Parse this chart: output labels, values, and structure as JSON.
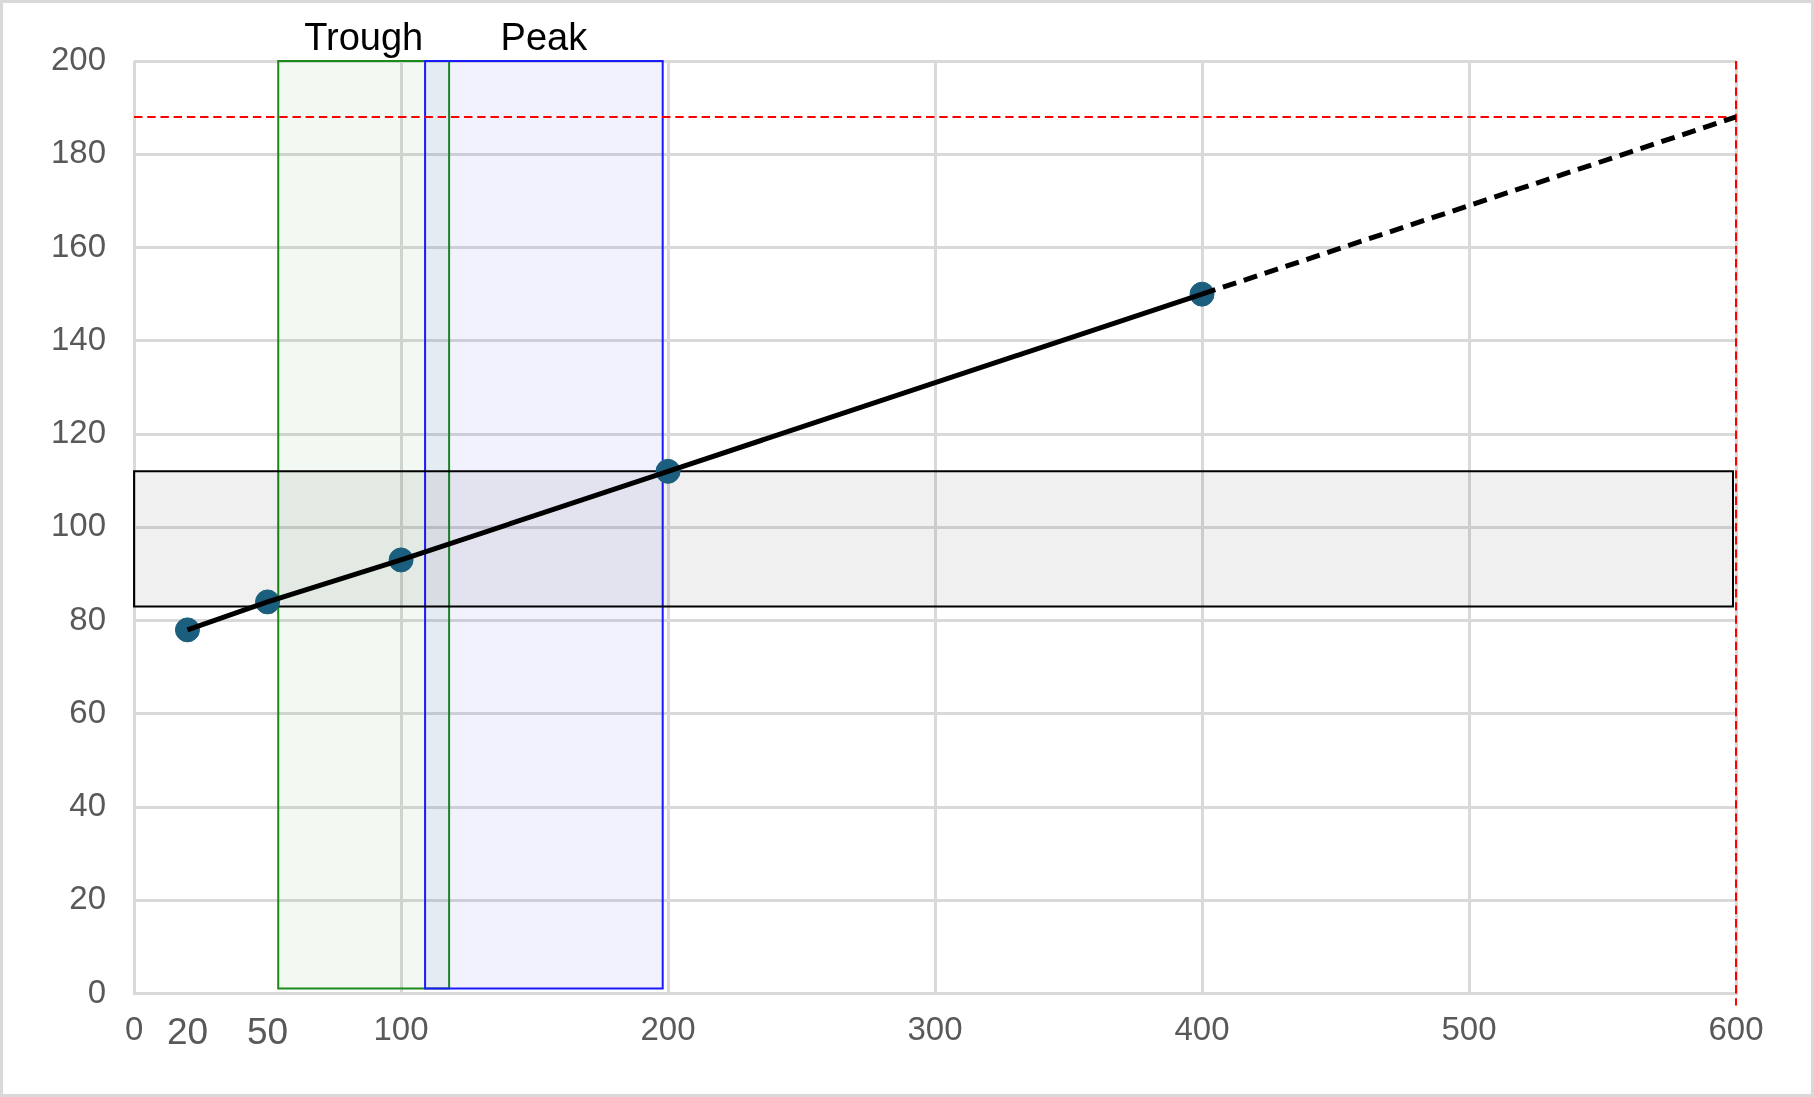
{
  "chart_data": {
    "type": "scatter",
    "xlim": [
      0,
      600
    ],
    "xticks": [
      0,
      {
        "value": 20,
        "label": "20"
      },
      {
        "value": 50,
        "label": "50"
      },
      100,
      200,
      300,
      400,
      500,
      600
    ],
    "ylim": [
      0,
      200
    ],
    "yticks": [
      0,
      20,
      40,
      60,
      80,
      100,
      120,
      140,
      160,
      180,
      200
    ],
    "grid": true,
    "legend": false,
    "series": [
      {
        "type": "line",
        "color": "#000000",
        "x": [
          20,
          50,
          100,
          200,
          400
        ],
        "values": [
          78,
          84,
          93,
          112,
          150
        ],
        "marker": "none",
        "line_style": "solid"
      },
      {
        "type": "line",
        "color": "#000000",
        "x": [
          400,
          600
        ],
        "values": [
          150,
          188
        ],
        "marker": "none",
        "line_style": "dashed"
      },
      {
        "type": "scatter",
        "color": "#1b5e7e",
        "x": [
          20,
          50,
          100,
          200,
          400
        ],
        "values": [
          78,
          84,
          93,
          112,
          150
        ],
        "marker": "circle"
      }
    ],
    "bands": [
      {
        "axis": "x",
        "from": 54,
        "to": 118,
        "label": "Trough",
        "color": "#1a8a1a"
      },
      {
        "axis": "x",
        "from": 109,
        "to": 198,
        "label": "Peak",
        "color": "#1a1aff"
      },
      {
        "axis": "y",
        "from": 83,
        "to": 112,
        "color": "#000000"
      }
    ],
    "ref_lines": [
      {
        "axis": "y",
        "value": 188,
        "color": "#ff0000",
        "line_style": "dashed"
      },
      {
        "axis": "x",
        "value": 600,
        "color": "#ff0000",
        "line_style": "dashed"
      }
    ]
  }
}
